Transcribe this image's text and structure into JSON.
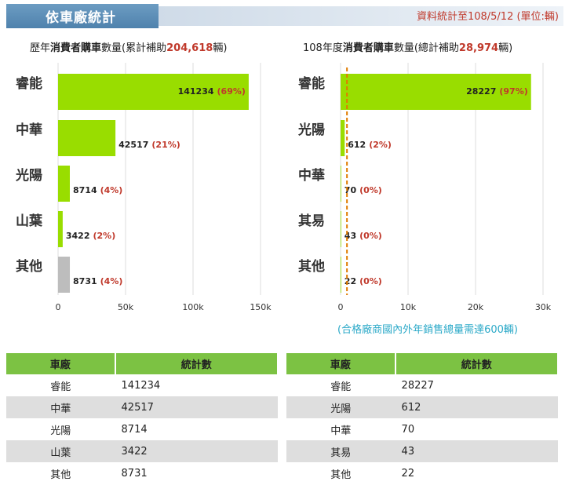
{
  "header": {
    "title": "依車廠統計",
    "note": "資料統計至108/5/12 (單位:輛)"
  },
  "chart_data": [
    {
      "type": "bar",
      "orientation": "horizontal",
      "title_parts": [
        "歷年",
        "消費者購車",
        "數量(累計補助",
        "204,618",
        "輛)"
      ],
      "categories": [
        "睿能",
        "中華",
        "光陽",
        "山葉",
        "其他"
      ],
      "values": [
        141234,
        42517,
        8714,
        3422,
        8731
      ],
      "percent_labels": [
        "(69%)",
        "(21%)",
        "(4%)",
        "(2%)",
        "(4%)"
      ],
      "bar_colors": [
        "#99dd00",
        "#99dd00",
        "#99dd00",
        "#99dd00",
        "#bdbdbd"
      ],
      "xlim": [
        0,
        150000
      ],
      "ticks": [
        0,
        50000,
        100000,
        150000
      ],
      "tick_labels": [
        "0",
        "50k",
        "100k",
        "150k"
      ],
      "grid": true
    },
    {
      "type": "bar",
      "orientation": "horizontal",
      "title_parts": [
        "108年度",
        "消費者購車",
        "數量(總計補助",
        "28,974",
        "輛)"
      ],
      "categories": [
        "睿能",
        "光陽",
        "中華",
        "其易",
        "其他"
      ],
      "values": [
        28227,
        612,
        70,
        43,
        22
      ],
      "percent_labels": [
        "(97%)",
        "(2%)",
        "(0%)",
        "(0%)",
        "(0%)"
      ],
      "bar_colors": [
        "#99dd00",
        "#99dd00",
        "#99dd00",
        "#99dd00",
        "#99dd00"
      ],
      "xlim": [
        0,
        30000
      ],
      "ticks": [
        0,
        10000,
        20000,
        30000
      ],
      "tick_labels": [
        "0",
        "10k",
        "20k",
        "30k"
      ],
      "threshold": 600,
      "threshold_color": "#e07b00",
      "threshold_note": "(合格廠商國內外年銷售總量需達600輛)",
      "grid": true
    }
  ],
  "tables": [
    {
      "headers": [
        "車廠",
        "統計數"
      ],
      "rows": [
        [
          "睿能",
          "141234"
        ],
        [
          "中華",
          "42517"
        ],
        [
          "光陽",
          "8714"
        ],
        [
          "山葉",
          "3422"
        ],
        [
          "其他",
          "8731"
        ]
      ]
    },
    {
      "headers": [
        "車廠",
        "統計數"
      ],
      "rows": [
        [
          "睿能",
          "28227"
        ],
        [
          "光陽",
          "612"
        ],
        [
          "中華",
          "70"
        ],
        [
          "其易",
          "43"
        ],
        [
          "其他",
          "22"
        ]
      ]
    }
  ]
}
